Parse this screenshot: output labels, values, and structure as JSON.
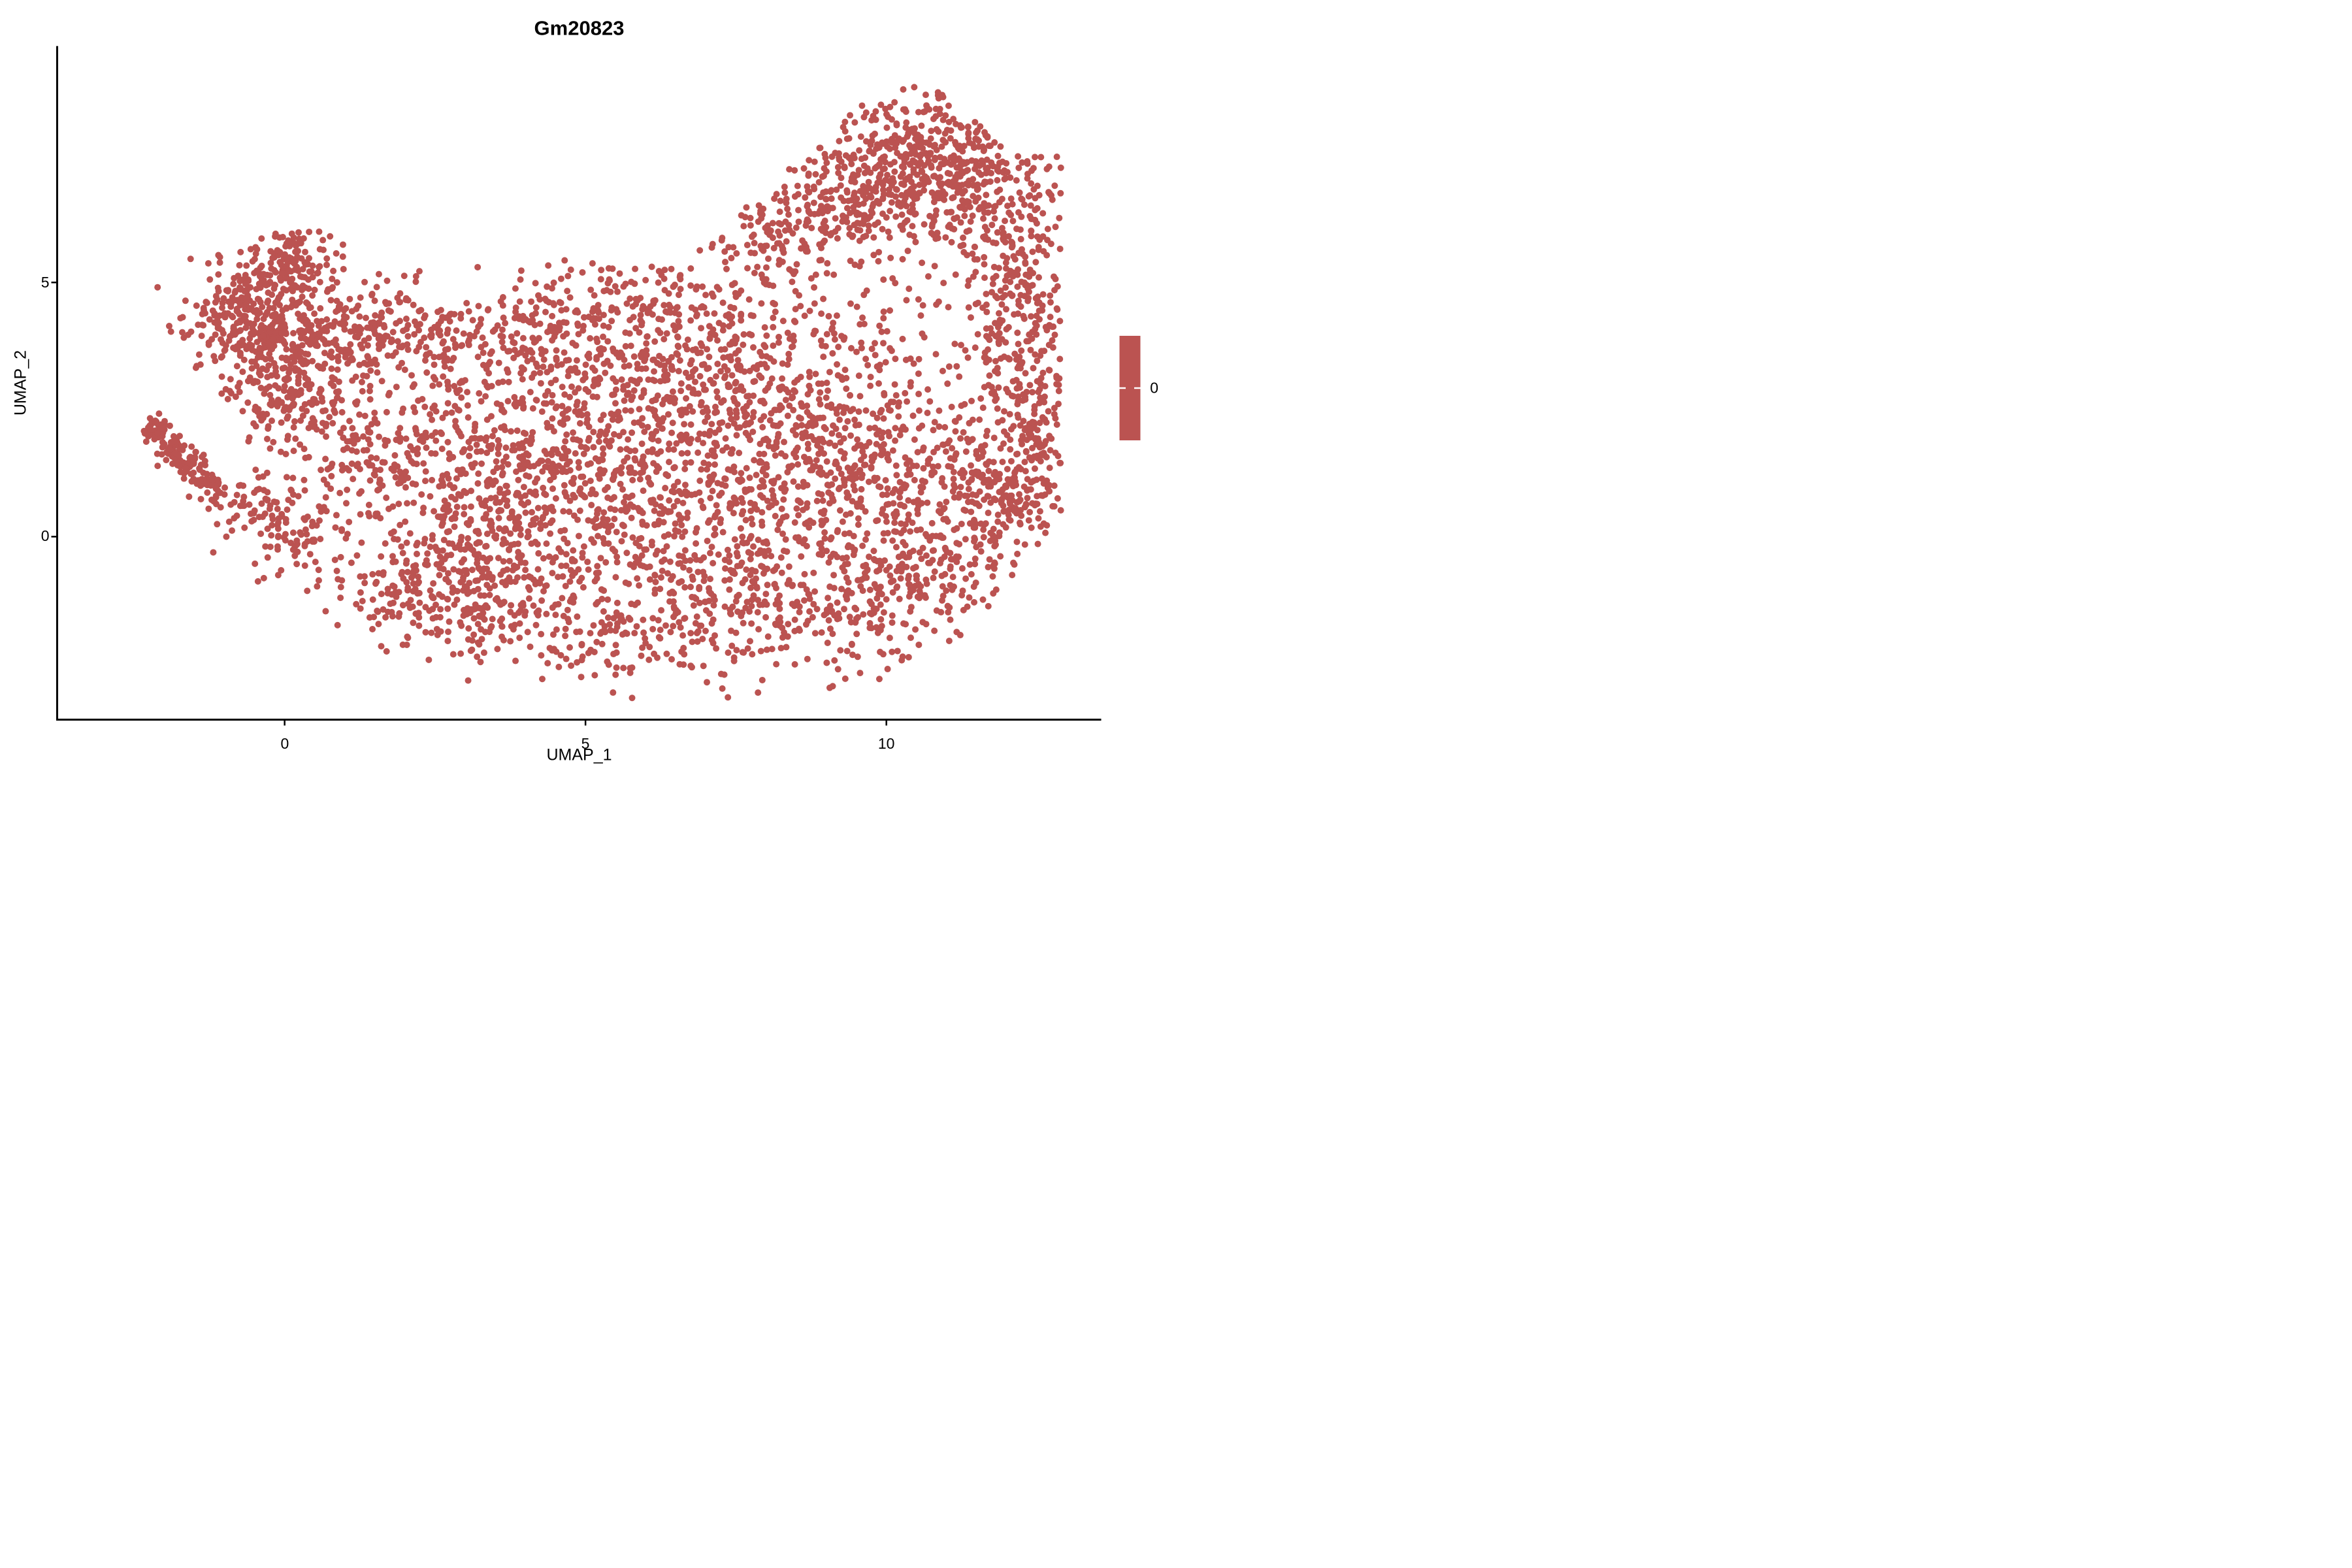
{
  "chart_data": {
    "type": "scatter",
    "title": "Gm20823",
    "xlabel": "UMAP_1",
    "ylabel": "UMAP_2",
    "xlim": [
      -3.78,
      13.57
    ],
    "ylim": [
      -3.6,
      9.65
    ],
    "xticks": [
      "0",
      "5",
      "10"
    ],
    "yticks": [
      "0",
      "5"
    ],
    "xtick_values": [
      0,
      5,
      10
    ],
    "ytick_values": [
      0,
      5
    ],
    "grid": false,
    "background": "#ffffff",
    "axis_color": "#000000",
    "point_color": "#BB5351",
    "point_radius_data_px": 10,
    "n_points_target": 6270,
    "seed": 1234,
    "legend": {
      "position": "right",
      "label": "0",
      "bar_color": "#BB5351",
      "tick_color": "#ffffff"
    },
    "clusters": [
      {
        "x": -2.15,
        "y": 2.1,
        "sdx": 0.13,
        "sdy": 0.13,
        "n": 40
      },
      {
        "x": -1.85,
        "y": 1.75,
        "sdx": 0.13,
        "sdy": 0.13,
        "n": 40
      },
      {
        "x": -1.55,
        "y": 1.4,
        "sdx": 0.13,
        "sdy": 0.13,
        "n": 40
      },
      {
        "x": -1.25,
        "y": 1.05,
        "sdx": 0.13,
        "sdy": 0.13,
        "n": 40
      },
      {
        "x": -0.6,
        "y": 0.55,
        "sdx": 0.3,
        "sdy": 0.3,
        "n": 50
      },
      {
        "x": 0.1,
        "y": -0.1,
        "sdx": 0.35,
        "sdy": 0.35,
        "n": 60
      },
      {
        "x": 0.15,
        "y": 5.45,
        "sdx": 0.38,
        "sdy": 0.42,
        "n": 130
      },
      {
        "x": -0.5,
        "y": 4.35,
        "sdx": 0.55,
        "sdy": 0.6,
        "n": 330
      },
      {
        "x": 0.45,
        "y": 3.6,
        "sdx": 0.6,
        "sdy": 0.55,
        "n": 200
      },
      {
        "x": 1.6,
        "y": 4.05,
        "sdx": 0.6,
        "sdy": 0.45,
        "n": 130
      },
      {
        "x": 2.6,
        "y": 3.9,
        "sdx": 0.4,
        "sdy": 0.4,
        "n": 50
      },
      {
        "x": 0.0,
        "y": 2.6,
        "sdx": 0.5,
        "sdy": 0.45,
        "n": 90
      },
      {
        "x": 10.7,
        "y": 7.4,
        "sdx": 0.9,
        "sdy": 0.75,
        "n": 520
      },
      {
        "x": 9.3,
        "y": 6.6,
        "sdx": 0.6,
        "sdy": 0.6,
        "n": 160
      },
      {
        "x": 8.2,
        "y": 6.1,
        "sdx": 0.55,
        "sdy": 0.5,
        "n": 110
      },
      {
        "x": 11.9,
        "y": 6.3,
        "sdx": 0.5,
        "sdy": 0.9,
        "n": 170
      },
      {
        "x": 12.3,
        "y": 4.6,
        "sdx": 0.45,
        "sdy": 0.9,
        "n": 150
      },
      {
        "x": 12.4,
        "y": 2.6,
        "sdx": 0.45,
        "sdy": 1.0,
        "n": 170
      },
      {
        "x": 12.2,
        "y": 0.9,
        "sdx": 0.5,
        "sdy": 0.7,
        "n": 130
      },
      {
        "x": 7.0,
        "y": 3.6,
        "sdx": 1.8,
        "sdy": 0.9,
        "n": 420
      },
      {
        "x": 5.2,
        "y": 2.2,
        "sdx": 1.6,
        "sdy": 1.0,
        "n": 380
      },
      {
        "x": 8.8,
        "y": 2.0,
        "sdx": 1.5,
        "sdy": 1.1,
        "n": 420
      },
      {
        "x": 10.8,
        "y": 1.2,
        "sdx": 1.0,
        "sdy": 1.0,
        "n": 220
      },
      {
        "x": 6.5,
        "y": 0.6,
        "sdx": 2.2,
        "sdy": 0.9,
        "n": 450
      },
      {
        "x": 3.4,
        "y": 0.6,
        "sdx": 1.2,
        "sdy": 1.0,
        "n": 300
      },
      {
        "x": 4.6,
        "y": -1.4,
        "sdx": 1.8,
        "sdy": 0.8,
        "n": 330
      },
      {
        "x": 8.0,
        "y": -1.3,
        "sdx": 1.8,
        "sdy": 0.8,
        "n": 330
      },
      {
        "x": 2.2,
        "y": -1.0,
        "sdx": 0.9,
        "sdy": 0.7,
        "n": 170
      },
      {
        "x": 10.3,
        "y": -1.0,
        "sdx": 0.9,
        "sdy": 0.7,
        "n": 150
      },
      {
        "x": 11.3,
        "y": 0.0,
        "sdx": 0.6,
        "sdy": 0.6,
        "n": 80
      },
      {
        "x": 1.2,
        "y": 1.7,
        "sdx": 0.7,
        "sdy": 0.8,
        "n": 120
      },
      {
        "x": 6.2,
        "y": 4.9,
        "sdx": 0.9,
        "sdy": 0.4,
        "n": 90
      },
      {
        "x": 4.2,
        "y": 4.0,
        "sdx": 0.8,
        "sdy": 0.6,
        "n": 110
      },
      {
        "x": 2.8,
        "y": 2.2,
        "sdx": 0.8,
        "sdy": 0.8,
        "n": 90
      }
    ],
    "clip": {
      "left_umin": -2.45,
      "bottom_quad": [
        -1.3,
        -0.685,
        0.0535
      ],
      "bottom_right_line": {
        "u0": 11.05,
        "v0": -2.32,
        "slope": 1.42
      },
      "top": {
        "left_umax": 2.9,
        "left_v": 6.0,
        "mid_umax": 6.7,
        "mid_v": 5.45,
        "slope": 1.06,
        "cap": 8.85
      },
      "right": {
        "umax": 12.9,
        "diag_vstart": 7.5,
        "diag_ustart": 12.1,
        "diag_slope": 0.95
      }
    }
  }
}
